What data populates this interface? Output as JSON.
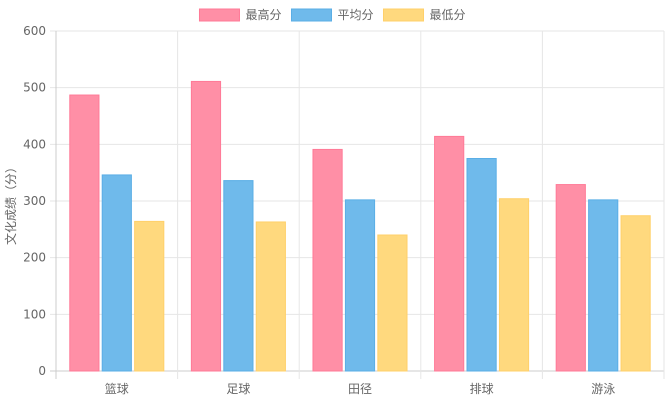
{
  "chart_data": {
    "type": "bar",
    "ylabel": "文化成绩（分）",
    "xlabel": "",
    "categories": [
      "篮球",
      "足球",
      "田径",
      "排球",
      "游泳"
    ],
    "ylim": [
      0,
      600
    ],
    "yticks": [
      0,
      100,
      200,
      300,
      400,
      500,
      600
    ],
    "grid": true,
    "legend_position": "top-center",
    "series": [
      {
        "name": "最高分",
        "values": [
          487,
          511,
          391,
          414,
          329
        ],
        "color": "#FF8FA6",
        "border": "#FF7A97"
      },
      {
        "name": "平均分",
        "values": [
          346,
          336,
          302,
          375,
          302
        ],
        "color": "#6FBAEB",
        "border": "#5AAEE6"
      },
      {
        "name": "最低分",
        "values": [
          264,
          263,
          240,
          304,
          274
        ],
        "color": "#FFD97E",
        "border": "#FFD06A"
      }
    ]
  }
}
